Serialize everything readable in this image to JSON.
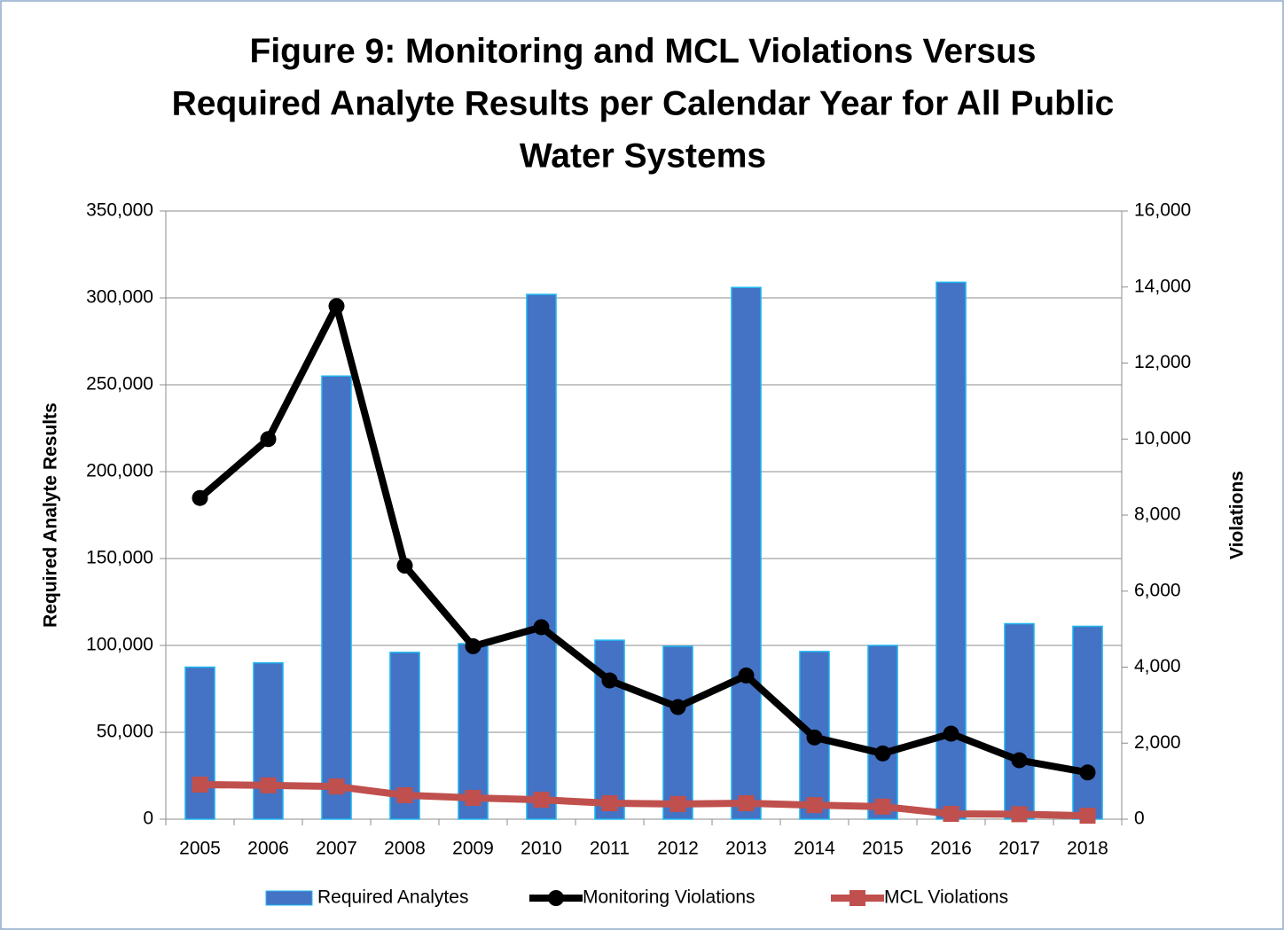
{
  "chart_data": {
    "type": "bar",
    "title": [
      "Figure 9: Monitoring and MCL Violations Versus",
      "Required Analyte Results per Calendar Year for All Public",
      "Water Systems"
    ],
    "ylabel": "Required Analyte Results",
    "y2label": "Violations",
    "categories": [
      "2005",
      "2006",
      "2007",
      "2008",
      "2009",
      "2010",
      "2011",
      "2012",
      "2013",
      "2014",
      "2015",
      "2016",
      "2017",
      "2018"
    ],
    "series": [
      {
        "name": "Required Analytes",
        "type": "bar",
        "color": "#4472c4",
        "edge_color": "#1fb8f0",
        "values": [
          87500,
          90000,
          255000,
          96000,
          101000,
          302000,
          103000,
          99500,
          306000,
          96500,
          100000,
          309000,
          112500,
          111000
        ]
      },
      {
        "name": "Monitoring Violations",
        "type": "line",
        "axis": "y2",
        "color": "#000000",
        "marker": "circle",
        "values": [
          8450,
          10000,
          13500,
          6670,
          4550,
          5050,
          3650,
          2950,
          3780,
          2150,
          1730,
          2250,
          1550,
          1230
        ]
      },
      {
        "name": "MCL Violations",
        "type": "line",
        "axis": "y2",
        "color": "#c0504d",
        "marker": "square",
        "values": [
          910,
          890,
          860,
          630,
          560,
          510,
          420,
          400,
          420,
          370,
          330,
          140,
          130,
          90
        ]
      }
    ],
    "ylim": [
      0,
      350000
    ],
    "yticks": [
      0,
      {
        "value": 50000,
        "label": "50,000"
      },
      {
        "value": 100000,
        "label": "100,000"
      },
      {
        "value": 150000,
        "label": "150,000"
      },
      {
        "value": 200000,
        "label": "200,000"
      },
      {
        "value": 250000,
        "label": "250,000"
      },
      {
        "value": 300000,
        "label": "300,000"
      },
      {
        "value": 350000,
        "label": "350,000"
      }
    ],
    "y2lim": [
      0,
      16000
    ],
    "y2ticks": [
      0,
      {
        "value": 2000,
        "label": "2,000"
      },
      {
        "value": 4000,
        "label": "4,000"
      },
      {
        "value": 6000,
        "label": "6,000"
      },
      {
        "value": 8000,
        "label": "8,000"
      },
      {
        "value": 10000,
        "label": "10,000"
      },
      {
        "value": 12000,
        "label": "12,000"
      },
      {
        "value": 14000,
        "label": "14,000"
      },
      {
        "value": 16000,
        "label": "16,000"
      }
    ],
    "grid": true,
    "legend": "bottom"
  }
}
